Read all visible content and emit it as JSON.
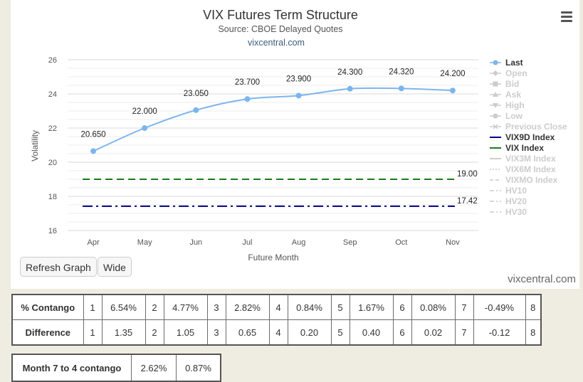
{
  "chart_data": {
    "type": "line",
    "title": "VIX Futures Term Structure",
    "subtitle": "Source: CBOE Delayed Quotes",
    "credit_top": "vixcentral.com",
    "xlabel": "Future Month",
    "ylabel": "Volatility",
    "ylim": [
      16,
      26
    ],
    "yticks": [
      16,
      18,
      20,
      22,
      24,
      26
    ],
    "categories": [
      "Apr",
      "May",
      "Jun",
      "Jul",
      "Aug",
      "Sep",
      "Oct",
      "Nov"
    ],
    "series": [
      {
        "name": "Last",
        "values": [
          20.65,
          22.0,
          23.05,
          23.7,
          23.9,
          24.3,
          24.32,
          24.2
        ],
        "labels": [
          "20.650",
          "22.000",
          "23.050",
          "23.700",
          "23.900",
          "24.300",
          "24.320",
          "24.200"
        ],
        "color": "#7cb5ec"
      },
      {
        "name": "VIX9D Index",
        "value": 17.42,
        "label": "17.42",
        "color": "#000080",
        "style": "dash-dot"
      },
      {
        "name": "VIX Index",
        "value": 19.0,
        "label": "19.00",
        "color": "#1a7a1a",
        "style": "dash"
      }
    ],
    "legend": {
      "position": "right",
      "items": [
        {
          "name": "Last",
          "active": true,
          "symbol": "circle"
        },
        {
          "name": "Open",
          "active": false,
          "symbol": "diamond"
        },
        {
          "name": "Bid",
          "active": false,
          "symbol": "square"
        },
        {
          "name": "Ask",
          "active": false,
          "symbol": "triangle-up"
        },
        {
          "name": "High",
          "active": false,
          "symbol": "triangle-down"
        },
        {
          "name": "Low",
          "active": false,
          "symbol": "circle"
        },
        {
          "name": "Previous Close",
          "active": false,
          "symbol": "cross"
        },
        {
          "name": "VIX9D Index",
          "active": true,
          "symbol": "line",
          "color": "#000080"
        },
        {
          "name": "VIX Index",
          "active": true,
          "symbol": "line",
          "color": "#1a7a1a"
        },
        {
          "name": "VIX3M Index",
          "active": false,
          "symbol": "line"
        },
        {
          "name": "VIX6M Index",
          "active": false,
          "symbol": "dotted"
        },
        {
          "name": "VIXMO Index",
          "active": false,
          "symbol": "dashed"
        },
        {
          "name": "HV10",
          "active": false,
          "symbol": "dashdot"
        },
        {
          "name": "HV20",
          "active": false,
          "symbol": "dashdot"
        },
        {
          "name": "HV30",
          "active": false,
          "symbol": "dashdot"
        }
      ]
    }
  },
  "buttons": {
    "refresh": "Refresh Graph",
    "wide": "Wide"
  },
  "credit_bottom": "vixcentral.com",
  "contango_table": {
    "rows": [
      {
        "label": "% Contango",
        "cells": [
          "1",
          "6.54%",
          "2",
          "4.77%",
          "3",
          "2.82%",
          "4",
          "0.84%",
          "5",
          "1.67%",
          "6",
          "0.08%",
          "7",
          "-0.49%",
          "8"
        ]
      },
      {
        "label": "Difference",
        "cells": [
          "1",
          "1.35",
          "2",
          "1.05",
          "3",
          "0.65",
          "4",
          "0.20",
          "5",
          "0.40",
          "6",
          "0.02",
          "7",
          "-0.12",
          "8"
        ]
      }
    ]
  },
  "month74_table": {
    "label": "Month 7 to 4 contango",
    "values": [
      "2.62%",
      "0.87%"
    ]
  }
}
